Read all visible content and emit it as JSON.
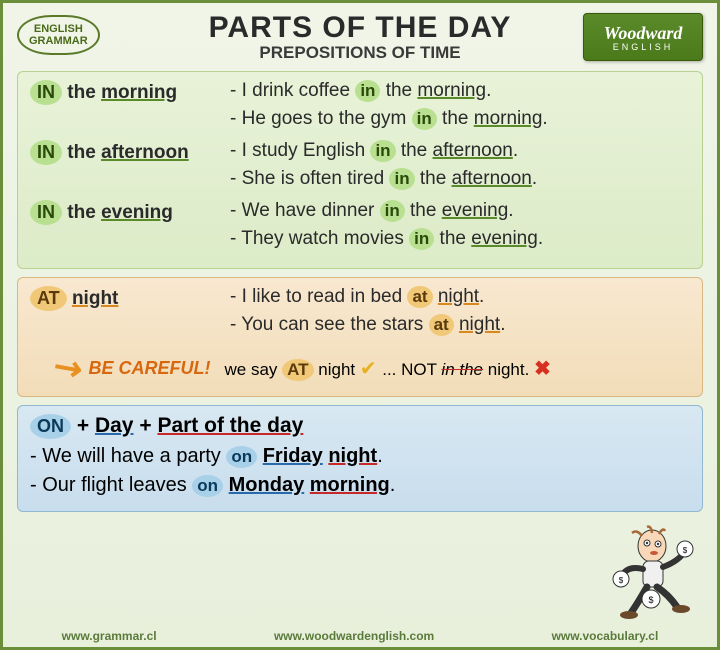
{
  "badge": {
    "line1": "ENGLISH",
    "line2": "GRAMMAR"
  },
  "title": "PARTS OF THE DAY",
  "subtitle": "PREPOSITIONS OF TIME",
  "logo": {
    "main": "Woodward",
    "sub": "ENGLISH"
  },
  "colors": {
    "in_pill": "#b8e090",
    "at_pill": "#f0c878",
    "on_pill": "#a8d0e8",
    "green_ul": "#5a8a2a",
    "orange_ul": "#d88820",
    "blue_ul": "#2a6aaa",
    "red_ul": "#c82828"
  },
  "in_section": {
    "rows": [
      {
        "prep": "IN",
        "phrase": "the ",
        "keyword": "morning",
        "examples": [
          {
            "pre": "- I drink coffee ",
            "prep": "in",
            "mid": " the ",
            "kw": "morning",
            "post": "."
          },
          {
            "pre": "- He goes to the gym ",
            "prep": "in",
            "mid": " the ",
            "kw": "morning",
            "post": "."
          }
        ]
      },
      {
        "prep": "IN",
        "phrase": "the ",
        "keyword": "afternoon",
        "examples": [
          {
            "pre": "- I study English ",
            "prep": "in",
            "mid": " the ",
            "kw": "afternoon",
            "post": "."
          },
          {
            "pre": "- She is often tired ",
            "prep": "in",
            "mid": " the ",
            "kw": "afternoon",
            "post": "."
          }
        ]
      },
      {
        "prep": "IN",
        "phrase": "the ",
        "keyword": "evening",
        "examples": [
          {
            "pre": "- We have dinner ",
            "prep": "in",
            "mid": " the ",
            "kw": "evening",
            "post": "."
          },
          {
            "pre": "- They watch movies ",
            "prep": "in",
            "mid": " the ",
            "kw": "evening",
            "post": "."
          }
        ]
      }
    ]
  },
  "at_section": {
    "prep": "AT",
    "keyword": "night",
    "examples": [
      {
        "pre": "- I like to read in bed ",
        "prep": "at",
        "mid": " ",
        "kw": "night",
        "post": "."
      },
      {
        "pre": "- You can see the stars ",
        "prep": "at",
        "mid": " ",
        "kw": "night",
        "post": "."
      }
    ],
    "careful": {
      "label": "BE CAREFUL!",
      "text1": "we say ",
      "prep": "AT",
      "text2": " night",
      "text3": "... NOT ",
      "wrong": "in the",
      "text4": " night."
    }
  },
  "on_section": {
    "rule_prep": "ON",
    "rule_plus1": " + ",
    "rule_day": "Day",
    "rule_plus2": " + ",
    "rule_part": "Part of the day",
    "examples": [
      {
        "pre": "- We will have a party ",
        "prep": "on",
        "mid": " ",
        "day": "Friday",
        "sp": " ",
        "part": "night",
        "post": "."
      },
      {
        "pre": "- Our flight leaves ",
        "prep": "on",
        "mid": " ",
        "day": "Monday",
        "sp": " ",
        "part": "morning",
        "post": "."
      }
    ]
  },
  "footer": {
    "left": "www.grammar.cl",
    "center": "www.woodwardenglish.com",
    "right": "www.vocabulary.cl"
  }
}
